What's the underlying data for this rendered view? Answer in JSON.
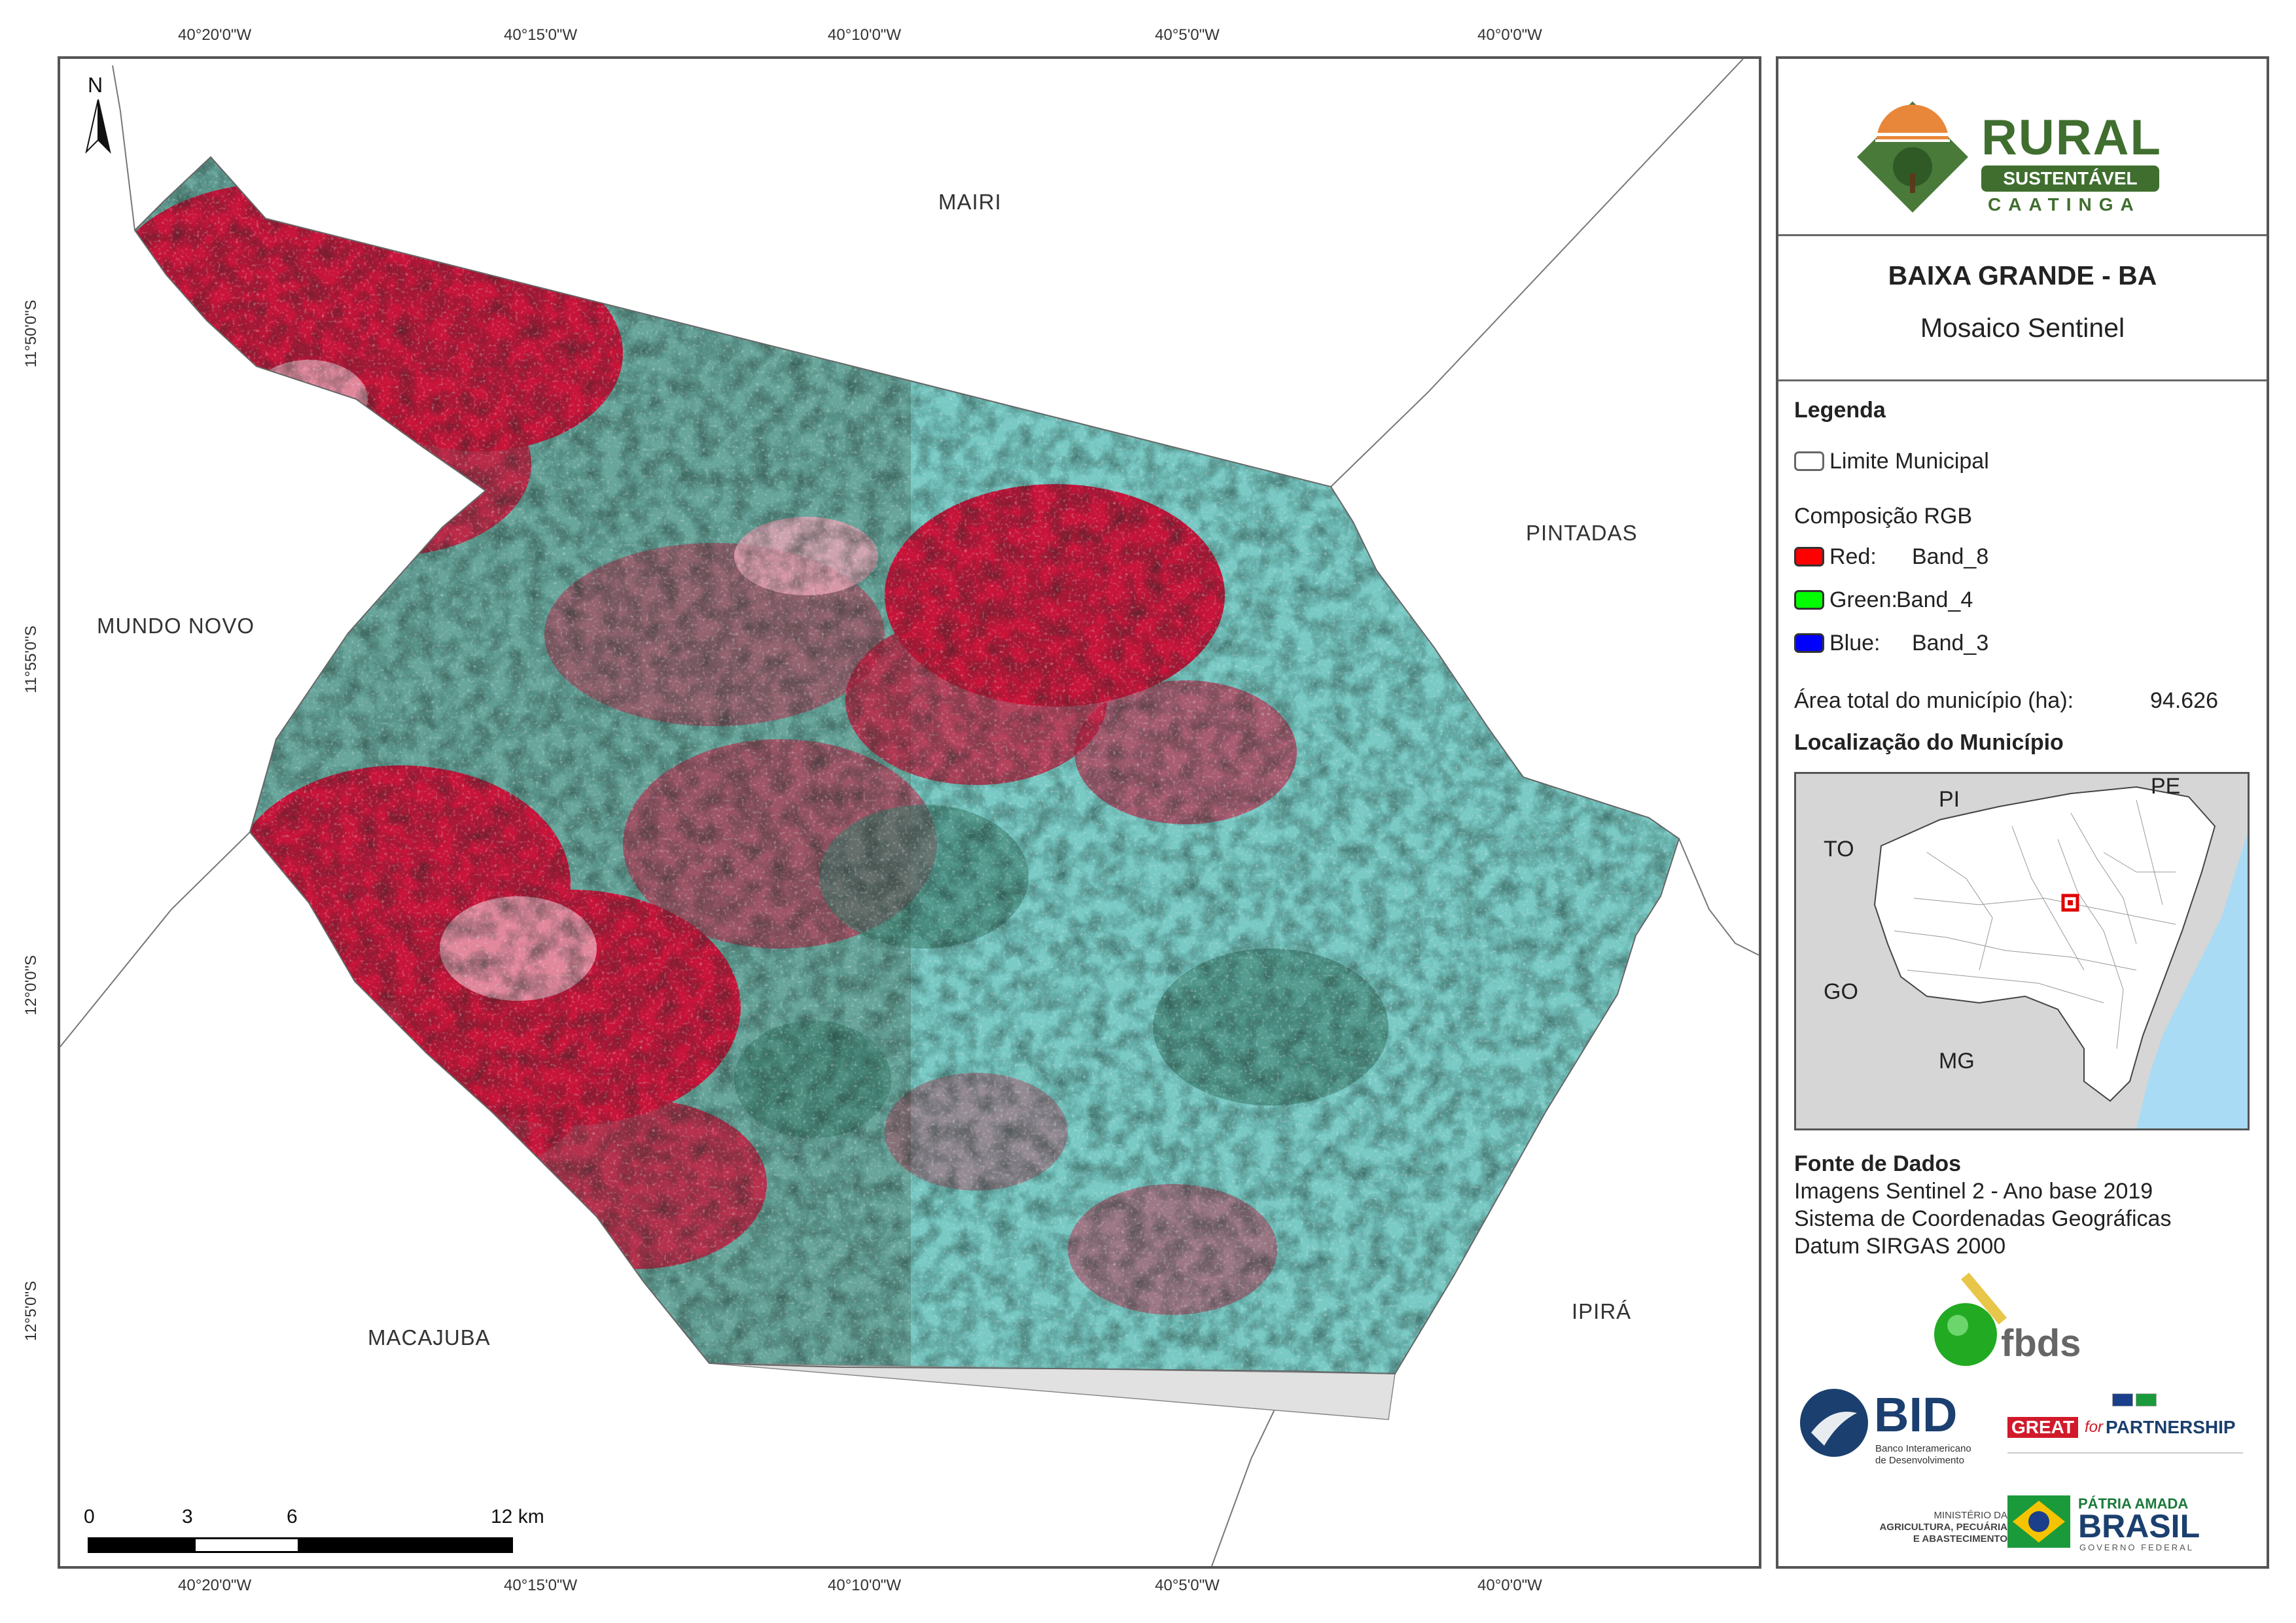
{
  "coordinates": {
    "lon_top": [
      "40°20'0\"W",
      "40°15'0\"W",
      "40°10'0\"W",
      "40°5'0\"W",
      "40°0'0\"W"
    ],
    "lon_bottom": [
      "40°20'0\"W",
      "40°15'0\"W",
      "40°10'0\"W",
      "40°5'0\"W",
      "40°0'0\"W"
    ],
    "lat_left": [
      "11°50'0\"S",
      "11°55'0\"S",
      "12°0'0\"S",
      "12°5'0\"S"
    ]
  },
  "map": {
    "north_label": "N",
    "neighbors": {
      "mairi": "MAIRI",
      "pintadas": "PINTADAS",
      "mundo_novo": "MUNDO NOVO",
      "macajuba": "MACAJUBA",
      "ipira": "IPIRÁ"
    },
    "scale_bar": {
      "labels": [
        "0",
        "3",
        "6",
        "12 km"
      ]
    },
    "colors": {
      "vegetation_red": "#c8143a",
      "bare_cyan": "#6fc4c0",
      "boundary": "#666666"
    }
  },
  "panel": {
    "logo": {
      "line1": "RURAL",
      "line2": "SUSTENTÁVEL",
      "line3": "CAATINGA"
    },
    "title": "BAIXA GRANDE - BA",
    "subtitle": "Mosaico Sentinel",
    "legend": {
      "heading": "Legenda",
      "boundary_label": "Limite Municipal",
      "rgb_heading": "Composição RGB",
      "bands": [
        {
          "channel": "Red:",
          "band": "Band_8",
          "color": "#ff0000"
        },
        {
          "channel": "Green:",
          "band": "Band_4",
          "color": "#00ff00"
        },
        {
          "channel": "Blue:",
          "band": "Band_3",
          "color": "#0000ff"
        }
      ],
      "area_label": "Área total do município (ha):",
      "area_value": "94.626"
    },
    "location": {
      "heading": "Localização do Município",
      "states": {
        "pi": "PI",
        "pe": "PE",
        "to": "TO",
        "go": "GO",
        "mg": "MG"
      }
    },
    "sources": {
      "heading": "Fonte de Dados",
      "lines": [
        "Imagens Sentinel 2 - Ano base 2019",
        "Sistema de Coordenadas Geográficas",
        "Datum SIRGAS 2000"
      ]
    },
    "partners": {
      "fbds": "fbds",
      "bid": "BID",
      "bid_sub1": "Banco Interamericano",
      "bid_sub2": "de Desenvolvimento",
      "great": "GREAT",
      "great_for": "for",
      "great_partnership": "PARTNERSHIP",
      "ministry1": "MINISTÉRIO DA",
      "ministry2": "AGRICULTURA, PECUÁRIA",
      "ministry3": "E ABASTECIMENTO",
      "patria1": "PÁTRIA AMADA",
      "patria2": "BRASIL",
      "patria3": "GOVERNO FEDERAL"
    }
  }
}
